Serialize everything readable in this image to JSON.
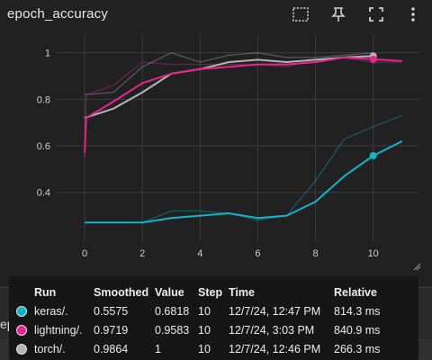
{
  "header": {
    "title": "epoch_accuracy",
    "icons": [
      "fit-domain-icon",
      "pin-icon",
      "fullscreen-icon",
      "more-vert-icon"
    ]
  },
  "behind": {
    "next_card_title": "epoch_loss"
  },
  "colors": {
    "background": "#212121",
    "grid": "#3d3d3d",
    "keras": "#12b5cb",
    "lightning": "#e52592",
    "torch": "#b4b4b4"
  },
  "chart_data": {
    "type": "line",
    "xlim": [
      -1,
      11.6
    ],
    "ylim": [
      0.19,
      1.08
    ],
    "x_ticks": [
      0,
      2,
      4,
      6,
      8,
      10
    ],
    "y_ticks": [
      0.4,
      0.6,
      0.8,
      1
    ],
    "x_tick_labels": [
      "0",
      "2",
      "4",
      "6",
      "8",
      "10"
    ],
    "y_tick_labels": [
      "0.4",
      "0.6",
      "0.8",
      "1"
    ],
    "series": [
      {
        "name": "keras/.",
        "color": "#12b5cb",
        "x": [
          0,
          1,
          2,
          3,
          4,
          5,
          6,
          7,
          8,
          9,
          10,
          11
        ],
        "smoothed": [
          0.27,
          0.27,
          0.27,
          0.29,
          0.3,
          0.31,
          0.29,
          0.3,
          0.36,
          0.47,
          0.5575,
          0.62
        ],
        "raw": [
          0.27,
          0.27,
          0.27,
          0.32,
          0.32,
          0.31,
          0.28,
          0.3,
          0.45,
          0.63,
          0.6818,
          0.73
        ],
        "marker_x": 10,
        "marker_y": 0.5575
      },
      {
        "name": "lightning/.",
        "color": "#e52592",
        "x": [
          0,
          0.05,
          1,
          2,
          3,
          4,
          5,
          6,
          7,
          8,
          9,
          10,
          11
        ],
        "smoothed": [
          0.57,
          0.72,
          0.79,
          0.87,
          0.91,
          0.93,
          0.94,
          0.95,
          0.95,
          0.96,
          0.98,
          0.9719,
          0.965
        ],
        "raw": [
          0.55,
          0.82,
          0.86,
          0.96,
          0.95,
          0.95,
          0.95,
          0.95,
          0.94,
          0.97,
          0.98,
          0.9583,
          0.96
        ],
        "marker_x": 10,
        "marker_y": 0.9719
      },
      {
        "name": "torch/.",
        "color": "#b4b4b4",
        "x": [
          0,
          1,
          2,
          3,
          4,
          5,
          6,
          7,
          8,
          9,
          10
        ],
        "smoothed": [
          0.72,
          0.76,
          0.83,
          0.91,
          0.93,
          0.96,
          0.97,
          0.96,
          0.97,
          0.98,
          0.9864
        ],
        "raw": [
          0.82,
          0.83,
          0.94,
          1.0,
          0.96,
          0.99,
          1.0,
          0.98,
          0.98,
          0.99,
          1.0
        ],
        "marker_x": 10,
        "marker_y": 0.9864
      }
    ]
  },
  "tooltip": {
    "headers": [
      "Run",
      "Smoothed",
      "Value",
      "Step",
      "Time",
      "Relative"
    ],
    "rows": [
      {
        "color": "#12b5cb",
        "run": "keras/.",
        "smoothed": "0.5575",
        "value": "0.6818",
        "step": "10",
        "time": "12/7/24, 12:47 PM",
        "relative": "814.3 ms"
      },
      {
        "color": "#e52592",
        "run": "lightning/.",
        "smoothed": "0.9719",
        "value": "0.9583",
        "step": "10",
        "time": "12/7/24, 3:03 PM",
        "relative": "840.9 ms"
      },
      {
        "color": "#b4b4b4",
        "run": "torch/.",
        "smoothed": "0.9864",
        "value": "1",
        "step": "10",
        "time": "12/7/24, 12:46 PM",
        "relative": "266.3 ms"
      }
    ]
  }
}
